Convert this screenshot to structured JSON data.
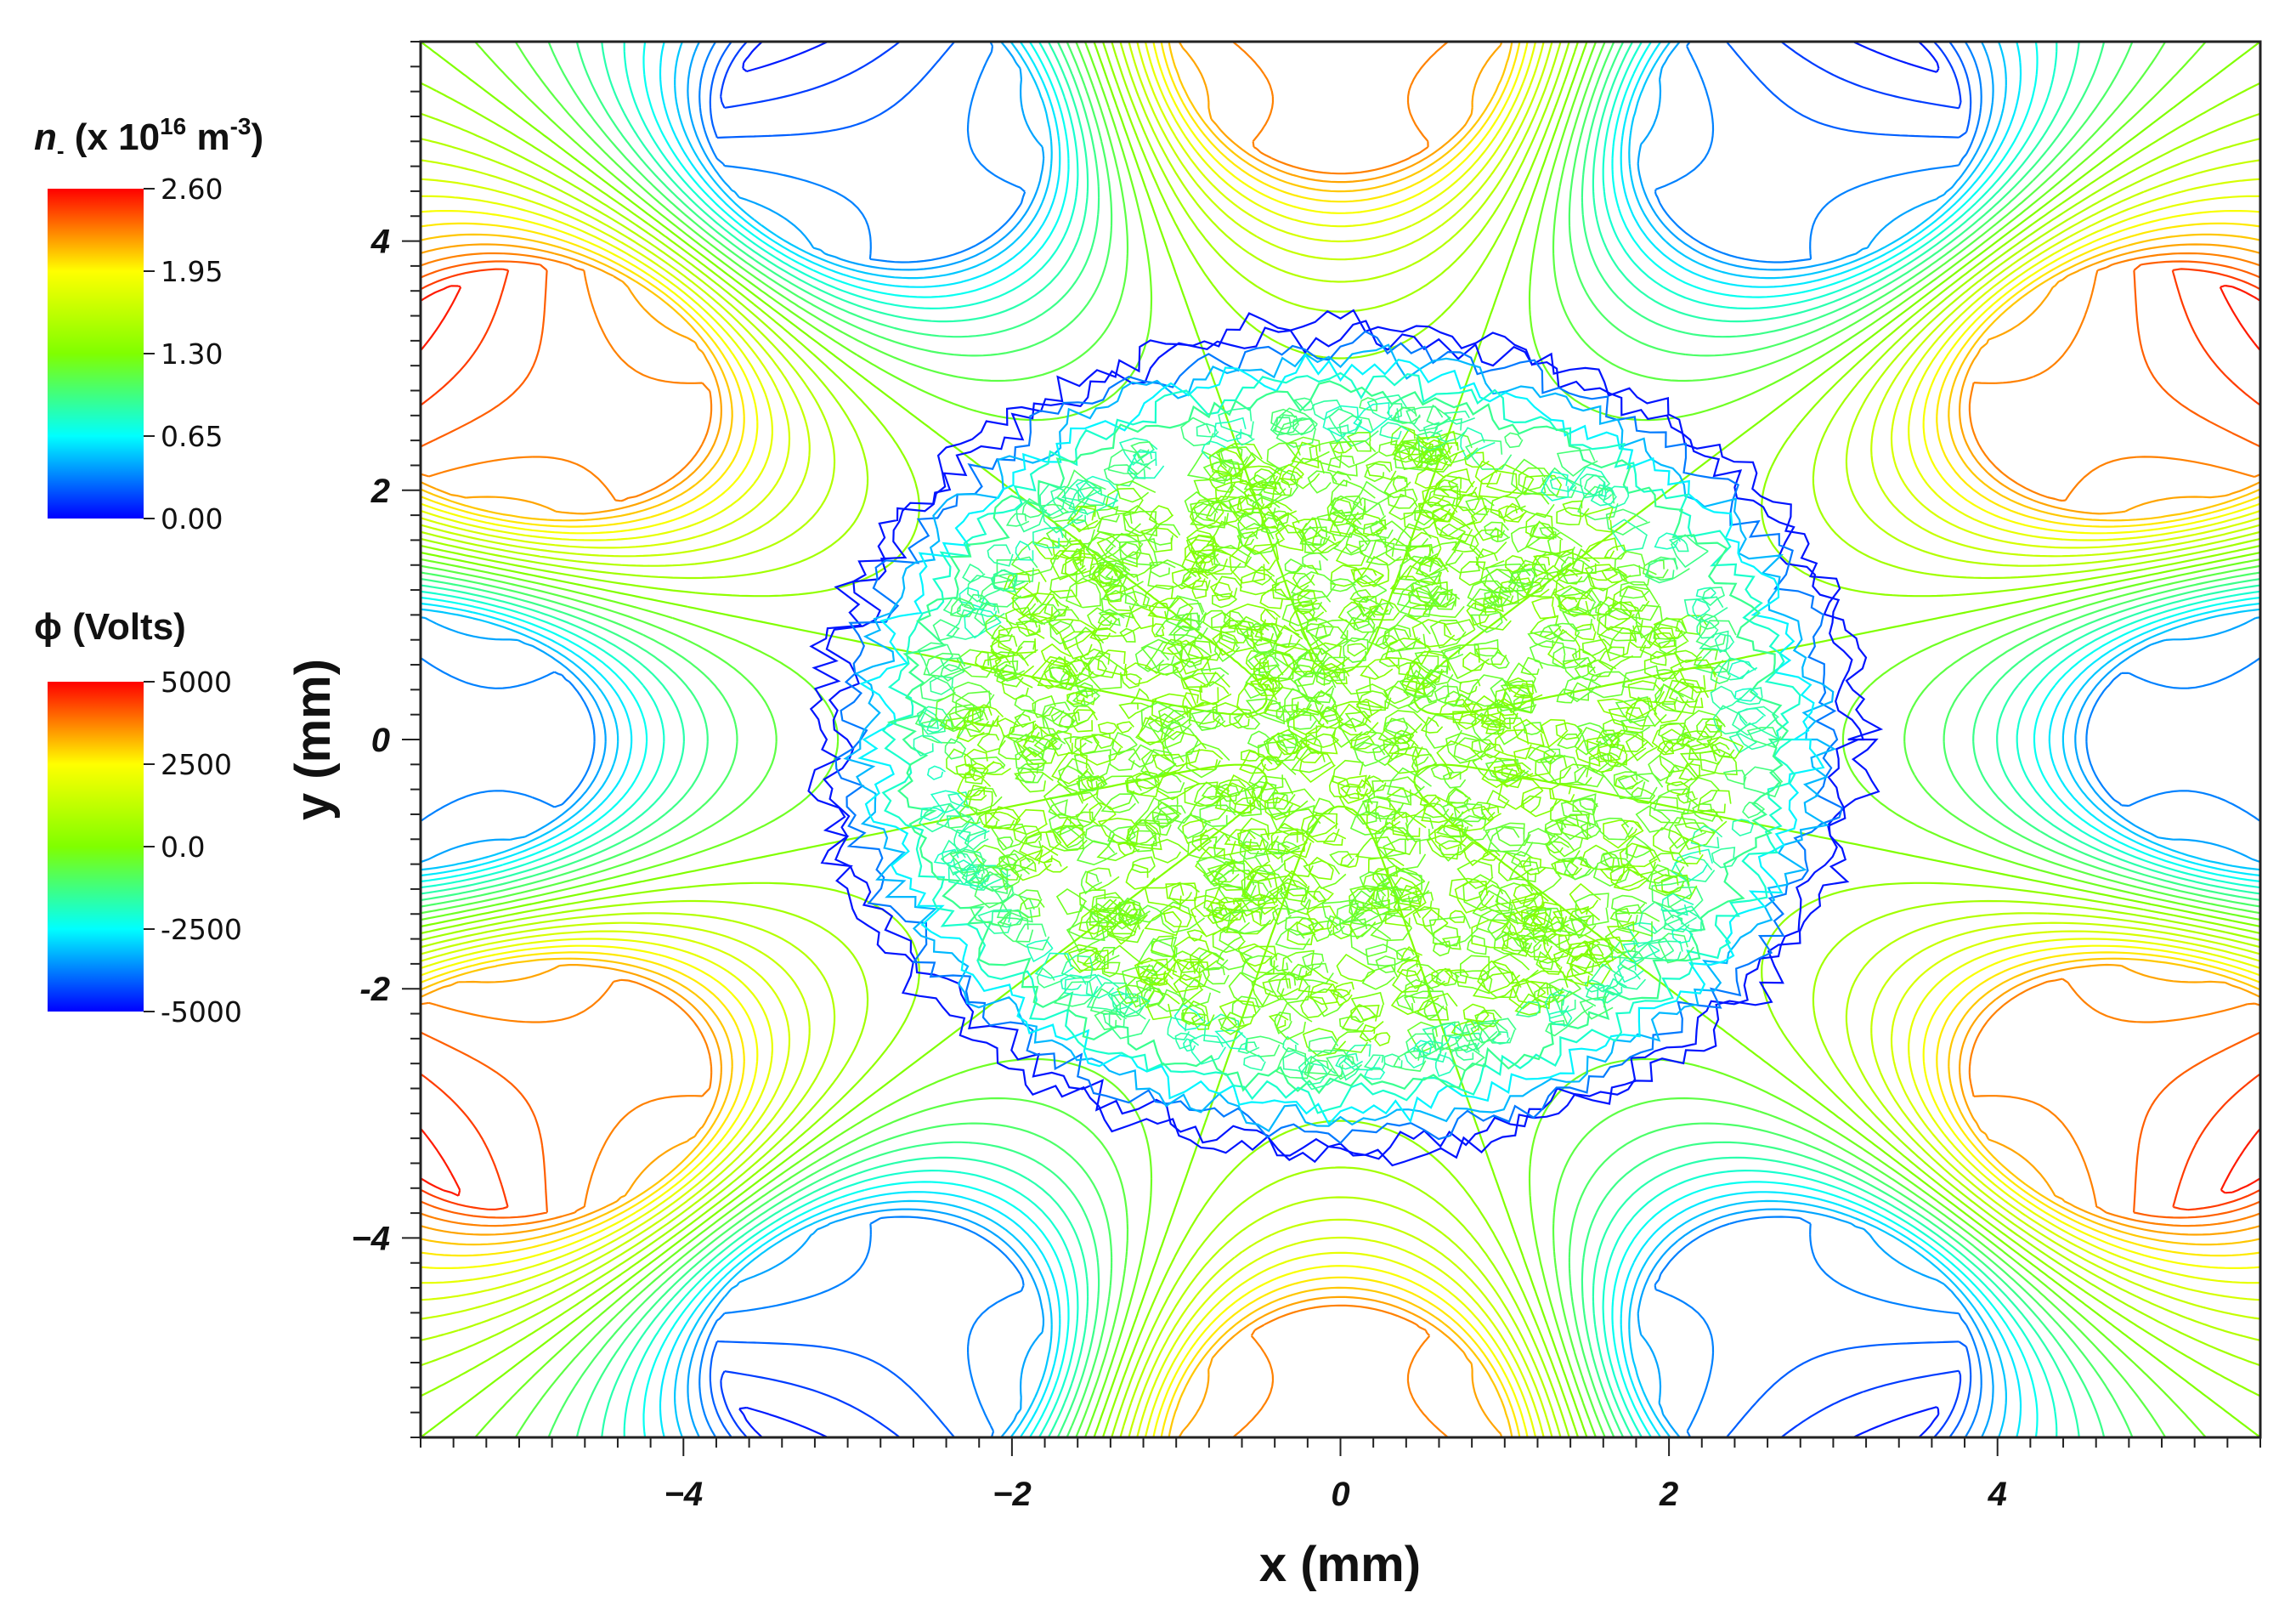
{
  "chart_data": {
    "type": "contour",
    "xlabel": "x (mm)",
    "ylabel": "y (mm)",
    "xlim": [
      -5.6,
      5.6
    ],
    "ylim": [
      -5.6,
      5.6
    ],
    "x_ticks": [
      {
        "value": -4,
        "label": "−4"
      },
      {
        "value": -2,
        "label": "−2"
      },
      {
        "value": 0,
        "label": "0"
      },
      {
        "value": 2,
        "label": "2"
      },
      {
        "value": 4,
        "label": "4"
      }
    ],
    "y_ticks": [
      {
        "value": 4,
        "label": "4"
      },
      {
        "value": 2,
        "label": "2"
      },
      {
        "value": 0,
        "label": "0"
      },
      {
        "value": -2,
        "label": "-2"
      },
      {
        "value": -4,
        "label": "−4"
      }
    ],
    "colorbars": [
      {
        "id": "density",
        "title_prefix": "n",
        "title_sub": "-",
        "title_rest": " (x 10",
        "title_sup1": "16",
        "title_unit": " m",
        "title_sup2": "-3",
        "title_close": ")",
        "min": 0.0,
        "max": 2.6,
        "ticks": [
          {
            "value": 2.6,
            "label": "2.60"
          },
          {
            "value": 1.95,
            "label": "1.95"
          },
          {
            "value": 1.3,
            "label": "1.30"
          },
          {
            "value": 0.65,
            "label": "0.65"
          },
          {
            "value": 0.0,
            "label": "0.00"
          }
        ]
      },
      {
        "id": "potential",
        "title": "ϕ (Volts)",
        "min": -5000,
        "max": 5000,
        "ticks": [
          {
            "value": 5000,
            "label": "5000"
          },
          {
            "value": 2500,
            "label": "2500"
          },
          {
            "value": 0,
            "label": "0.0"
          },
          {
            "value": -2500,
            "label": "-2500"
          },
          {
            "value": -5000,
            "label": "-5000"
          }
        ]
      }
    ],
    "colormap": [
      "#0000ff",
      "#00ffff",
      "#80ff00",
      "#ffff00",
      "#ff0000"
    ],
    "electrodes": {
      "count": 12,
      "ring_radius_mm": 5.6,
      "polarity_pattern": [
        "negative",
        "positive",
        "negative",
        "positive",
        "negative",
        "positive",
        "negative",
        "positive",
        "negative",
        "positive",
        "negative",
        "positive"
      ]
    },
    "plasma": {
      "center": [
        0.0,
        0.0
      ],
      "radius_x_mm": 3.0,
      "radius_y_mm": 3.15,
      "density_peak": 1.3
    }
  }
}
